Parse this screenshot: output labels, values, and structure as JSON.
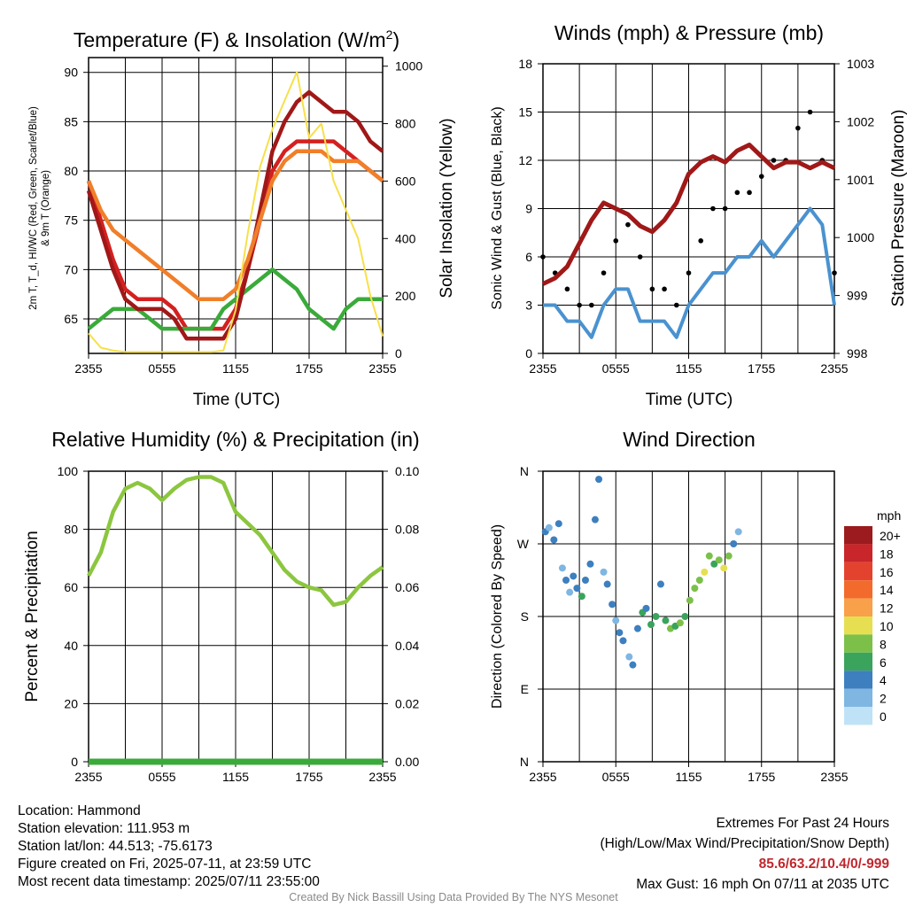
{
  "chart_data": [
    {
      "type": "line",
      "title": "Temperature (F) & Insolation (W/m",
      "title_sup": "2",
      "title_close": ")",
      "xlabel": "Time (UTC)",
      "ylabel_lines": [
        "2m T, T_d, HI/WC (Red, Green, Scarlet/Blue)",
        "& 9m T (Orange)"
      ],
      "ylabel2": "Solar Insolation (Yellow)",
      "x_ticks": [
        "2355",
        "0555",
        "1155",
        "1755",
        "2355"
      ],
      "y_ticks": [
        65,
        70,
        75,
        80,
        85,
        90
      ],
      "y2_ticks": [
        0,
        200,
        400,
        600,
        800,
        1000
      ],
      "ylim": [
        61.5,
        91.5
      ],
      "y2lim": [
        0,
        1030
      ],
      "x": [
        0,
        1,
        2,
        3,
        4,
        5,
        6,
        7,
        8,
        9,
        10,
        11,
        12,
        13,
        14,
        15,
        16,
        17,
        18,
        19,
        20,
        21,
        22,
        23,
        24
      ],
      "series": [
        {
          "key": "t2m",
          "color": "#d42020",
          "values": [
            79,
            75,
            71,
            68,
            67,
            67,
            67,
            66,
            64,
            64,
            64,
            64,
            66,
            70,
            75,
            80,
            82,
            83,
            83,
            83,
            83,
            82,
            81,
            80,
            79
          ]
        },
        {
          "key": "dewpoint",
          "color": "#3aaa3a",
          "values": [
            64,
            65,
            66,
            66,
            66,
            65,
            64,
            64,
            64,
            64,
            64,
            66,
            67,
            68,
            69,
            70,
            69,
            68,
            66,
            65,
            64,
            66,
            67,
            67,
            67
          ]
        },
        {
          "key": "heat_index",
          "color": "#a01818",
          "values": [
            78,
            74,
            70,
            67,
            66,
            66,
            66,
            65,
            63,
            63,
            63,
            63,
            65,
            70,
            76,
            82,
            85,
            87,
            88,
            87,
            86,
            86,
            85,
            83,
            82
          ]
        },
        {
          "key": "t9m",
          "color": "#f07f2a",
          "values": [
            79,
            76,
            74,
            73,
            72,
            71,
            70,
            69,
            68,
            67,
            67,
            67,
            68,
            71,
            75,
            79,
            81,
            82,
            82,
            82,
            81,
            81,
            81,
            80,
            79
          ]
        },
        {
          "key": "insolation",
          "color": "#f7e04a",
          "axis": "y2",
          "values": [
            70,
            20,
            10,
            5,
            5,
            5,
            5,
            5,
            5,
            5,
            5,
            10,
            150,
            420,
            650,
            780,
            880,
            980,
            750,
            800,
            600,
            500,
            400,
            200,
            60
          ]
        }
      ]
    },
    {
      "type": "line",
      "title": "Winds (mph) & Pressure (mb)",
      "xlabel": "Time (UTC)",
      "ylabel": "Sonic Wind & Gust (Blue, Black)",
      "ylabel2": "Station Pressure (Maroon)",
      "x_ticks": [
        "2355",
        "0555",
        "1155",
        "1755",
        "2355"
      ],
      "y_ticks": [
        0,
        3,
        6,
        9,
        12,
        15,
        18
      ],
      "y2_ticks": [
        998,
        999,
        1000,
        1001,
        1002,
        1003
      ],
      "ylim": [
        0,
        18
      ],
      "y2lim": [
        998,
        1003
      ],
      "x": [
        0,
        1,
        2,
        3,
        4,
        5,
        6,
        7,
        8,
        9,
        10,
        11,
        12,
        13,
        14,
        15,
        16,
        17,
        18,
        19,
        20,
        21,
        22,
        23,
        24
      ],
      "series": [
        {
          "key": "sonic_wind",
          "color": "#4a92d0",
          "values": [
            3,
            3,
            2,
            2,
            1,
            3,
            4,
            4,
            2,
            2,
            2,
            1,
            3,
            4,
            5,
            5,
            6,
            6,
            7,
            6,
            7,
            8,
            9,
            8,
            3
          ]
        },
        {
          "key": "gust",
          "color": "#000000",
          "marker": "dot",
          "values": [
            6,
            5,
            4,
            3,
            3,
            5,
            7,
            8,
            6,
            4,
            4,
            3,
            5,
            7,
            9,
            9,
            10,
            10,
            11,
            12,
            12,
            14,
            15,
            12,
            5
          ]
        },
        {
          "key": "station_pressure",
          "color": "#a01818",
          "axis": "y2",
          "values": [
            999.2,
            999.3,
            999.5,
            999.9,
            1000.3,
            1000.6,
            1000.5,
            1000.4,
            1000.2,
            1000.1,
            1000.3,
            1000.6,
            1001.1,
            1001.3,
            1001.4,
            1001.3,
            1001.5,
            1001.6,
            1001.4,
            1001.2,
            1001.3,
            1001.3,
            1001.2,
            1001.3,
            1001.2
          ]
        }
      ]
    },
    {
      "type": "line",
      "title": "Relative Humidity (%) & Precipitation (in)",
      "ylabel": "Percent & Precipitation",
      "x_ticks": [
        "2355",
        "0555",
        "1155",
        "1755",
        "2355"
      ],
      "y_ticks": [
        0,
        20,
        40,
        60,
        80,
        100
      ],
      "y2_ticks": [
        "0.00",
        "0.02",
        "0.04",
        "0.06",
        "0.08",
        "0.10"
      ],
      "ylim": [
        0,
        100
      ],
      "y2lim": [
        0,
        0.1
      ],
      "x": [
        0,
        1,
        2,
        3,
        4,
        5,
        6,
        7,
        8,
        9,
        10,
        11,
        12,
        13,
        14,
        15,
        16,
        17,
        18,
        19,
        20,
        21,
        22,
        23,
        24
      ],
      "series": [
        {
          "key": "rh",
          "color": "#8cc63f",
          "values": [
            64,
            72,
            86,
            94,
            96,
            94,
            90,
            94,
            97,
            98,
            98,
            96,
            86,
            82,
            78,
            72,
            66,
            62,
            60,
            59,
            54,
            55,
            60,
            64,
            67
          ]
        },
        {
          "key": "precip",
          "color": "#3aaa3a",
          "axis": "y2",
          "values": [
            0,
            0,
            0,
            0,
            0,
            0,
            0,
            0,
            0,
            0,
            0,
            0,
            0,
            0,
            0,
            0,
            0,
            0,
            0,
            0,
            0,
            0,
            0,
            0,
            0
          ]
        }
      ]
    },
    {
      "type": "scatter",
      "title": "Wind Direction",
      "ylabel": "Direction (Colored By Speed)",
      "x_ticks": [
        "2355",
        "0555",
        "1155",
        "1755",
        "2355"
      ],
      "y_ticks": [
        "N",
        "E",
        "S",
        "W",
        "N"
      ],
      "ylim": [
        0,
        360
      ],
      "points": [
        [
          0.2,
          285,
          3
        ],
        [
          0.5,
          290,
          2
        ],
        [
          0.9,
          275,
          4
        ],
        [
          1.3,
          295,
          4
        ],
        [
          1.6,
          240,
          2
        ],
        [
          1.9,
          225,
          3
        ],
        [
          2.2,
          210,
          2
        ],
        [
          2.5,
          230,
          4
        ],
        [
          2.8,
          215,
          3
        ],
        [
          3.2,
          205,
          6
        ],
        [
          3.5,
          225,
          4
        ],
        [
          3.9,
          245,
          3
        ],
        [
          4.3,
          300,
          4
        ],
        [
          4.6,
          350,
          3
        ],
        [
          5.0,
          235,
          2
        ],
        [
          5.3,
          220,
          3
        ],
        [
          5.7,
          195,
          4
        ],
        [
          6.0,
          175,
          2
        ],
        [
          6.3,
          160,
          4
        ],
        [
          6.6,
          150,
          3
        ],
        [
          7.1,
          130,
          2
        ],
        [
          7.4,
          120,
          4
        ],
        [
          7.8,
          165,
          3
        ],
        [
          8.2,
          185,
          6
        ],
        [
          8.5,
          190,
          4
        ],
        [
          8.9,
          170,
          6
        ],
        [
          9.3,
          180,
          5
        ],
        [
          9.7,
          220,
          4
        ],
        [
          10.1,
          175,
          6
        ],
        [
          10.5,
          165,
          7
        ],
        [
          10.9,
          168,
          6
        ],
        [
          11.3,
          172,
          7
        ],
        [
          11.7,
          180,
          6
        ],
        [
          12.1,
          200,
          7
        ],
        [
          12.5,
          215,
          8
        ],
        [
          12.9,
          225,
          7
        ],
        [
          13.3,
          235,
          9
        ],
        [
          13.7,
          255,
          8
        ],
        [
          14.1,
          245,
          6
        ],
        [
          14.5,
          250,
          7
        ],
        [
          14.9,
          240,
          9
        ],
        [
          15.3,
          255,
          7
        ],
        [
          15.7,
          270,
          4
        ],
        [
          16.1,
          285,
          2
        ]
      ]
    }
  ],
  "legend": {
    "title": "mph",
    "labels": [
      "20+",
      "18",
      "16",
      "14",
      "12",
      "10",
      "8",
      "6",
      "4",
      "2",
      "0"
    ],
    "colors": [
      "#9b1b1e",
      "#c8262a",
      "#e3432e",
      "#f26a2c",
      "#f9a04a",
      "#e6df52",
      "#7cc04a",
      "#3aa35c",
      "#3d7fbf",
      "#7fb6e2",
      "#bfe2f7"
    ]
  },
  "footer": {
    "location": "Location: Hammond",
    "elevation": "Station elevation: 111.953 m",
    "latlon": "Station lat/lon: 44.513; -75.6173",
    "created": "Figure created on Fri, 2025-07-11, at 23:59 UTC",
    "recent": "Most recent data timestamp: 2025/07/11 23:55:00",
    "extremes_title": "Extremes For Past 24 Hours",
    "extremes_desc": "(High/Low/Max Wind/Precipitation/Snow Depth)",
    "extremes_values": "85.6/63.2/10.4/0/-999",
    "max_gust": "Max Gust: 16 mph On 07/11 at 2035 UTC",
    "credit": "Created By Nick Bassill Using Data Provided By The NYS Mesonet"
  }
}
